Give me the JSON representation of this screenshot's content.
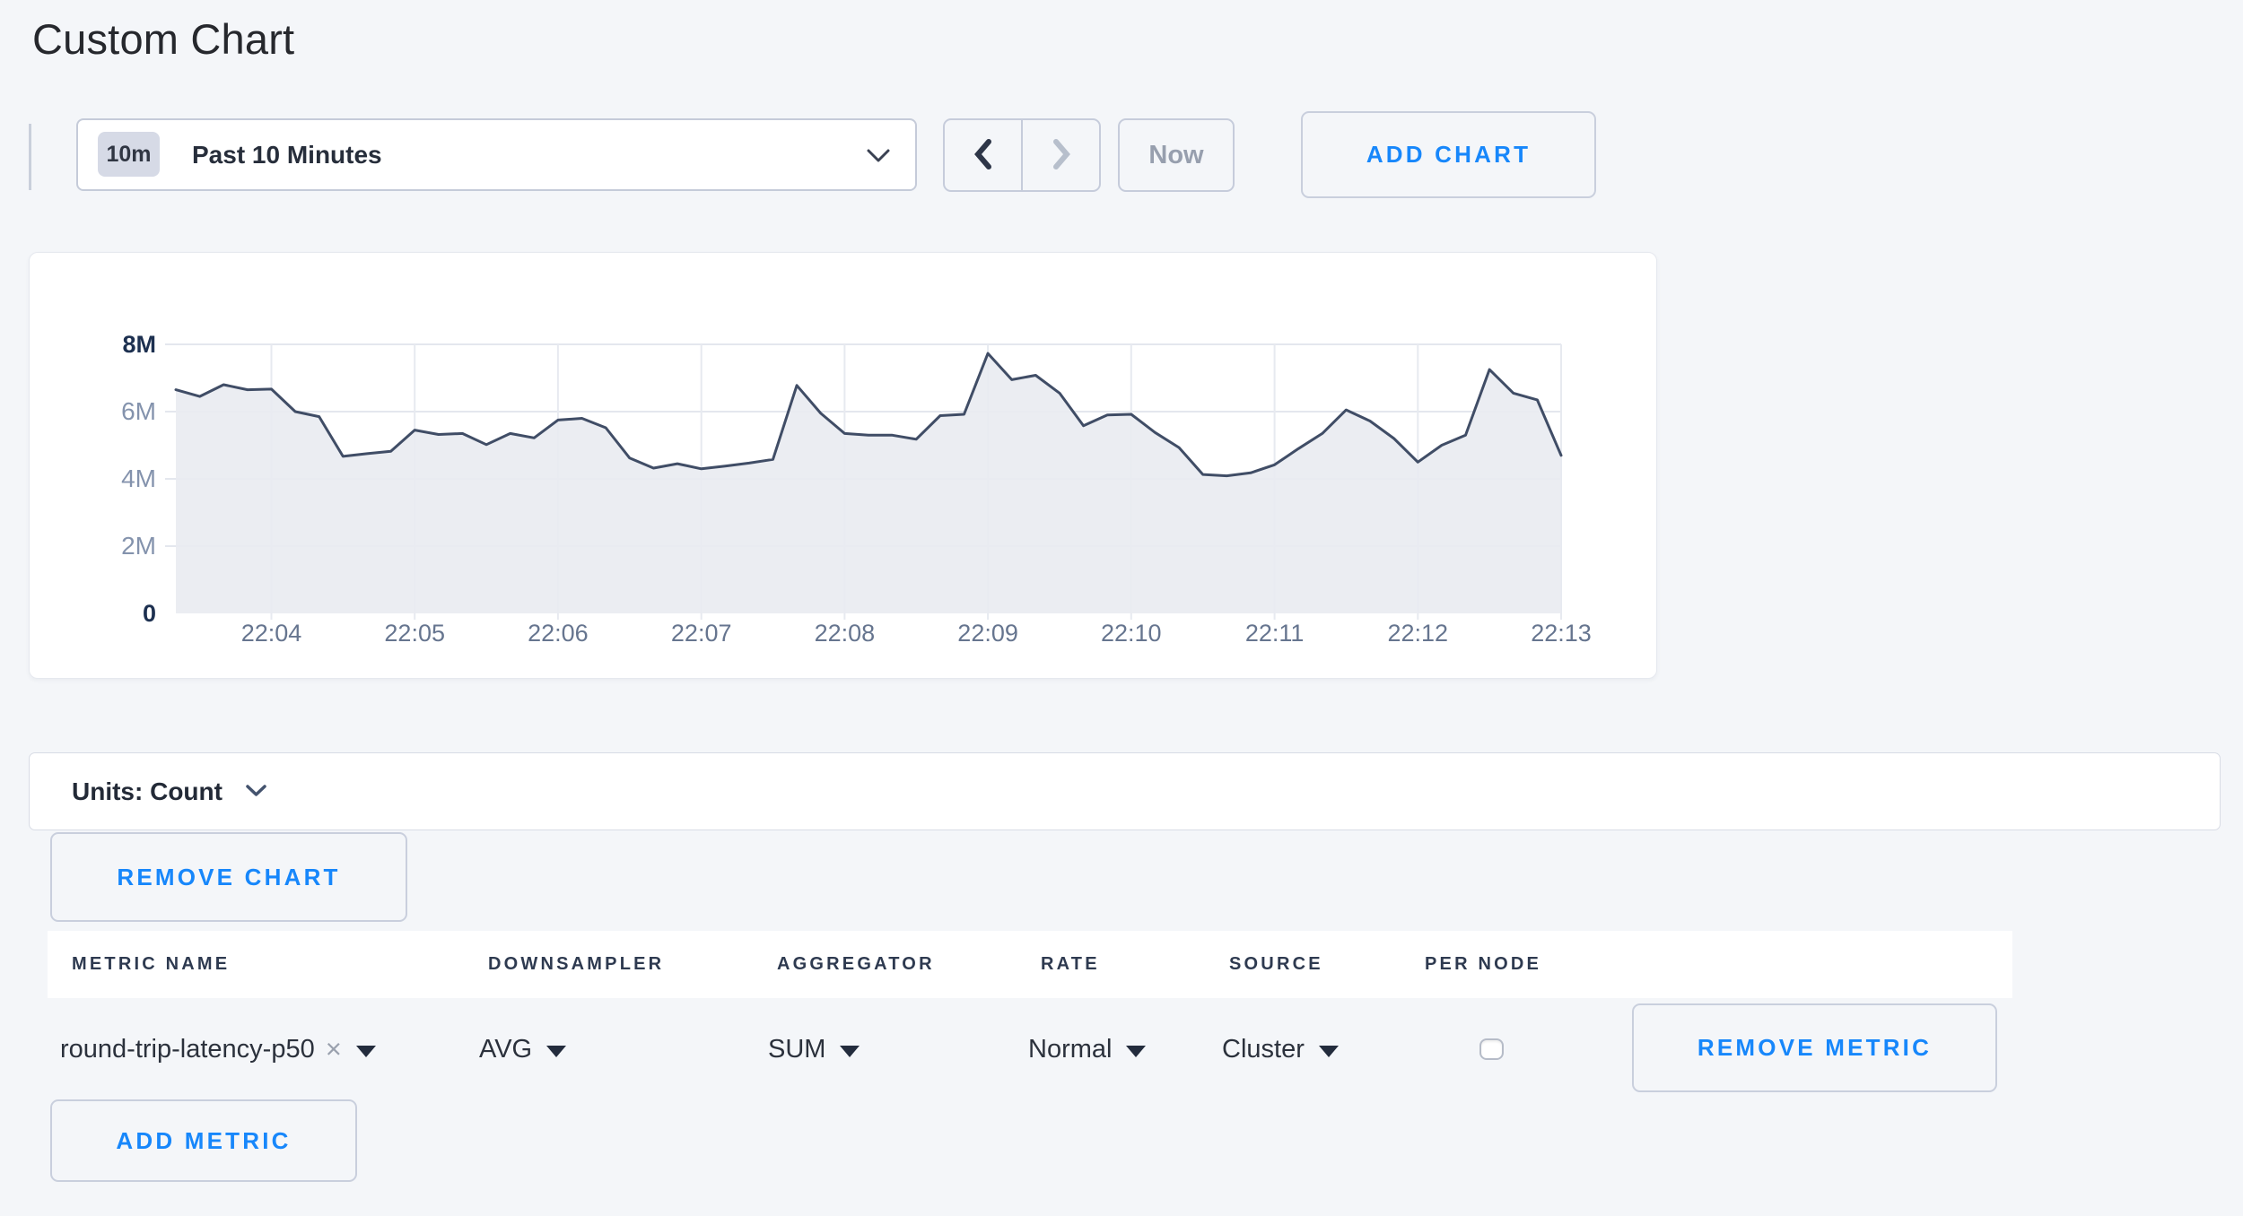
{
  "colors": {
    "accent_blue": "#1787fb",
    "chart_line": "#404d66",
    "chart_fill": "#e9ebf1",
    "grid_h": "#e4e7ee",
    "grid_v": "#e7eaf0"
  },
  "page": {
    "title": "Custom Chart"
  },
  "toolbar": {
    "time_badge": "10m",
    "time_label": "Past 10 Minutes",
    "now_label": "Now",
    "add_chart_label": "ADD CHART"
  },
  "icons": {
    "time_prev": "chevron-left",
    "time_next": "chevron-right",
    "time_dropdown": "chevron-down",
    "units_dropdown": "chevron-down",
    "select_caret": "triangle-down",
    "metric_remove": "x"
  },
  "chart_data": {
    "type": "area",
    "title": "",
    "xlabel": "",
    "ylabel": "Count",
    "ylim": [
      0,
      8000000
    ],
    "grid": true,
    "legend": "none",
    "start_time": "22:03:20",
    "interval_seconds": 10,
    "y_ticks": [
      {
        "label": "0",
        "value": 0,
        "strong": true
      },
      {
        "label": "2M",
        "value": 2000000
      },
      {
        "label": "4M",
        "value": 4000000
      },
      {
        "label": "6M",
        "value": 6000000
      },
      {
        "label": "8M",
        "value": 8000000,
        "strong": true
      }
    ],
    "x_ticks": [
      {
        "label": "22:04",
        "index": 4
      },
      {
        "label": "22:05",
        "index": 10
      },
      {
        "label": "22:06",
        "index": 16
      },
      {
        "label": "22:07",
        "index": 22
      },
      {
        "label": "22:08",
        "index": 28
      },
      {
        "label": "22:09",
        "index": 34
      },
      {
        "label": "22:10",
        "index": 40
      },
      {
        "label": "22:11",
        "index": 46
      },
      {
        "label": "22:12",
        "index": 52
      },
      {
        "label": "22:13",
        "index": 58
      }
    ],
    "series": [
      {
        "name": "round-trip-latency-p50",
        "values": [
          6650000,
          6450000,
          6800000,
          6650000,
          6670000,
          6000000,
          5850000,
          4670000,
          4750000,
          4820000,
          5450000,
          5320000,
          5350000,
          5020000,
          5350000,
          5220000,
          5750000,
          5800000,
          5520000,
          4620000,
          4320000,
          4450000,
          4300000,
          4380000,
          4470000,
          4580000,
          6780000,
          5950000,
          5350000,
          5300000,
          5300000,
          5180000,
          5880000,
          5920000,
          7730000,
          6950000,
          7080000,
          6550000,
          5580000,
          5900000,
          5920000,
          5380000,
          4930000,
          4130000,
          4090000,
          4180000,
          4420000,
          4900000,
          5350000,
          6050000,
          5720000,
          5200000,
          4500000,
          5000000,
          5300000,
          7250000,
          6550000,
          6350000,
          4700000
        ]
      }
    ]
  },
  "units_bar": {
    "label": "Units: Count"
  },
  "chart_actions": {
    "remove_chart_label": "REMOVE CHART"
  },
  "metrics_table": {
    "headers": [
      "METRIC NAME",
      "DOWNSAMPLER",
      "AGGREGATOR",
      "RATE",
      "SOURCE",
      "PER NODE"
    ],
    "rows": [
      {
        "metric_name": "round-trip-latency-p50",
        "remove_icon": "×",
        "downsampler": "AVG",
        "aggregator": "SUM",
        "rate": "Normal",
        "source": "Cluster",
        "per_node_checked": false,
        "remove_label": "REMOVE METRIC"
      }
    ],
    "add_metric_label": "ADD METRIC"
  }
}
